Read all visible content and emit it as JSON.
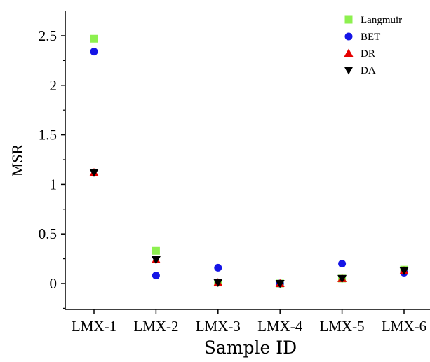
{
  "chart_data": {
    "type": "scatter",
    "xlabel": "Sample ID",
    "ylabel": "MSR",
    "categories": [
      "LMX-1",
      "LMX-2",
      "LMX-3",
      "LMX-4",
      "LMX-5",
      "LMX-6"
    ],
    "ylim": [
      -0.25,
      2.75
    ],
    "yticks": [
      0,
      0.5,
      1,
      1.5,
      2,
      2.5
    ],
    "ytick_labels": [
      "0",
      "0.5",
      "1",
      "1.5",
      "2",
      "2.5"
    ],
    "grid": false,
    "legend_position": "top-right",
    "series": [
      {
        "name": "Langmuir",
        "marker": "square",
        "color": "#8df04f",
        "values": [
          2.47,
          0.33,
          0.01,
          0.0,
          0.05,
          0.14
        ]
      },
      {
        "name": "BET",
        "marker": "circle",
        "color": "#1515e6",
        "values": [
          2.34,
          0.08,
          0.16,
          0.0,
          0.2,
          0.11
        ]
      },
      {
        "name": "DR",
        "marker": "triangle-up",
        "color": "#e60000",
        "values": [
          1.12,
          0.24,
          0.01,
          0.0,
          0.05,
          0.13
        ]
      },
      {
        "name": "DA",
        "marker": "triangle-down",
        "color": "#000000",
        "values": [
          1.12,
          0.24,
          0.01,
          0.0,
          0.05,
          0.13
        ]
      }
    ]
  }
}
